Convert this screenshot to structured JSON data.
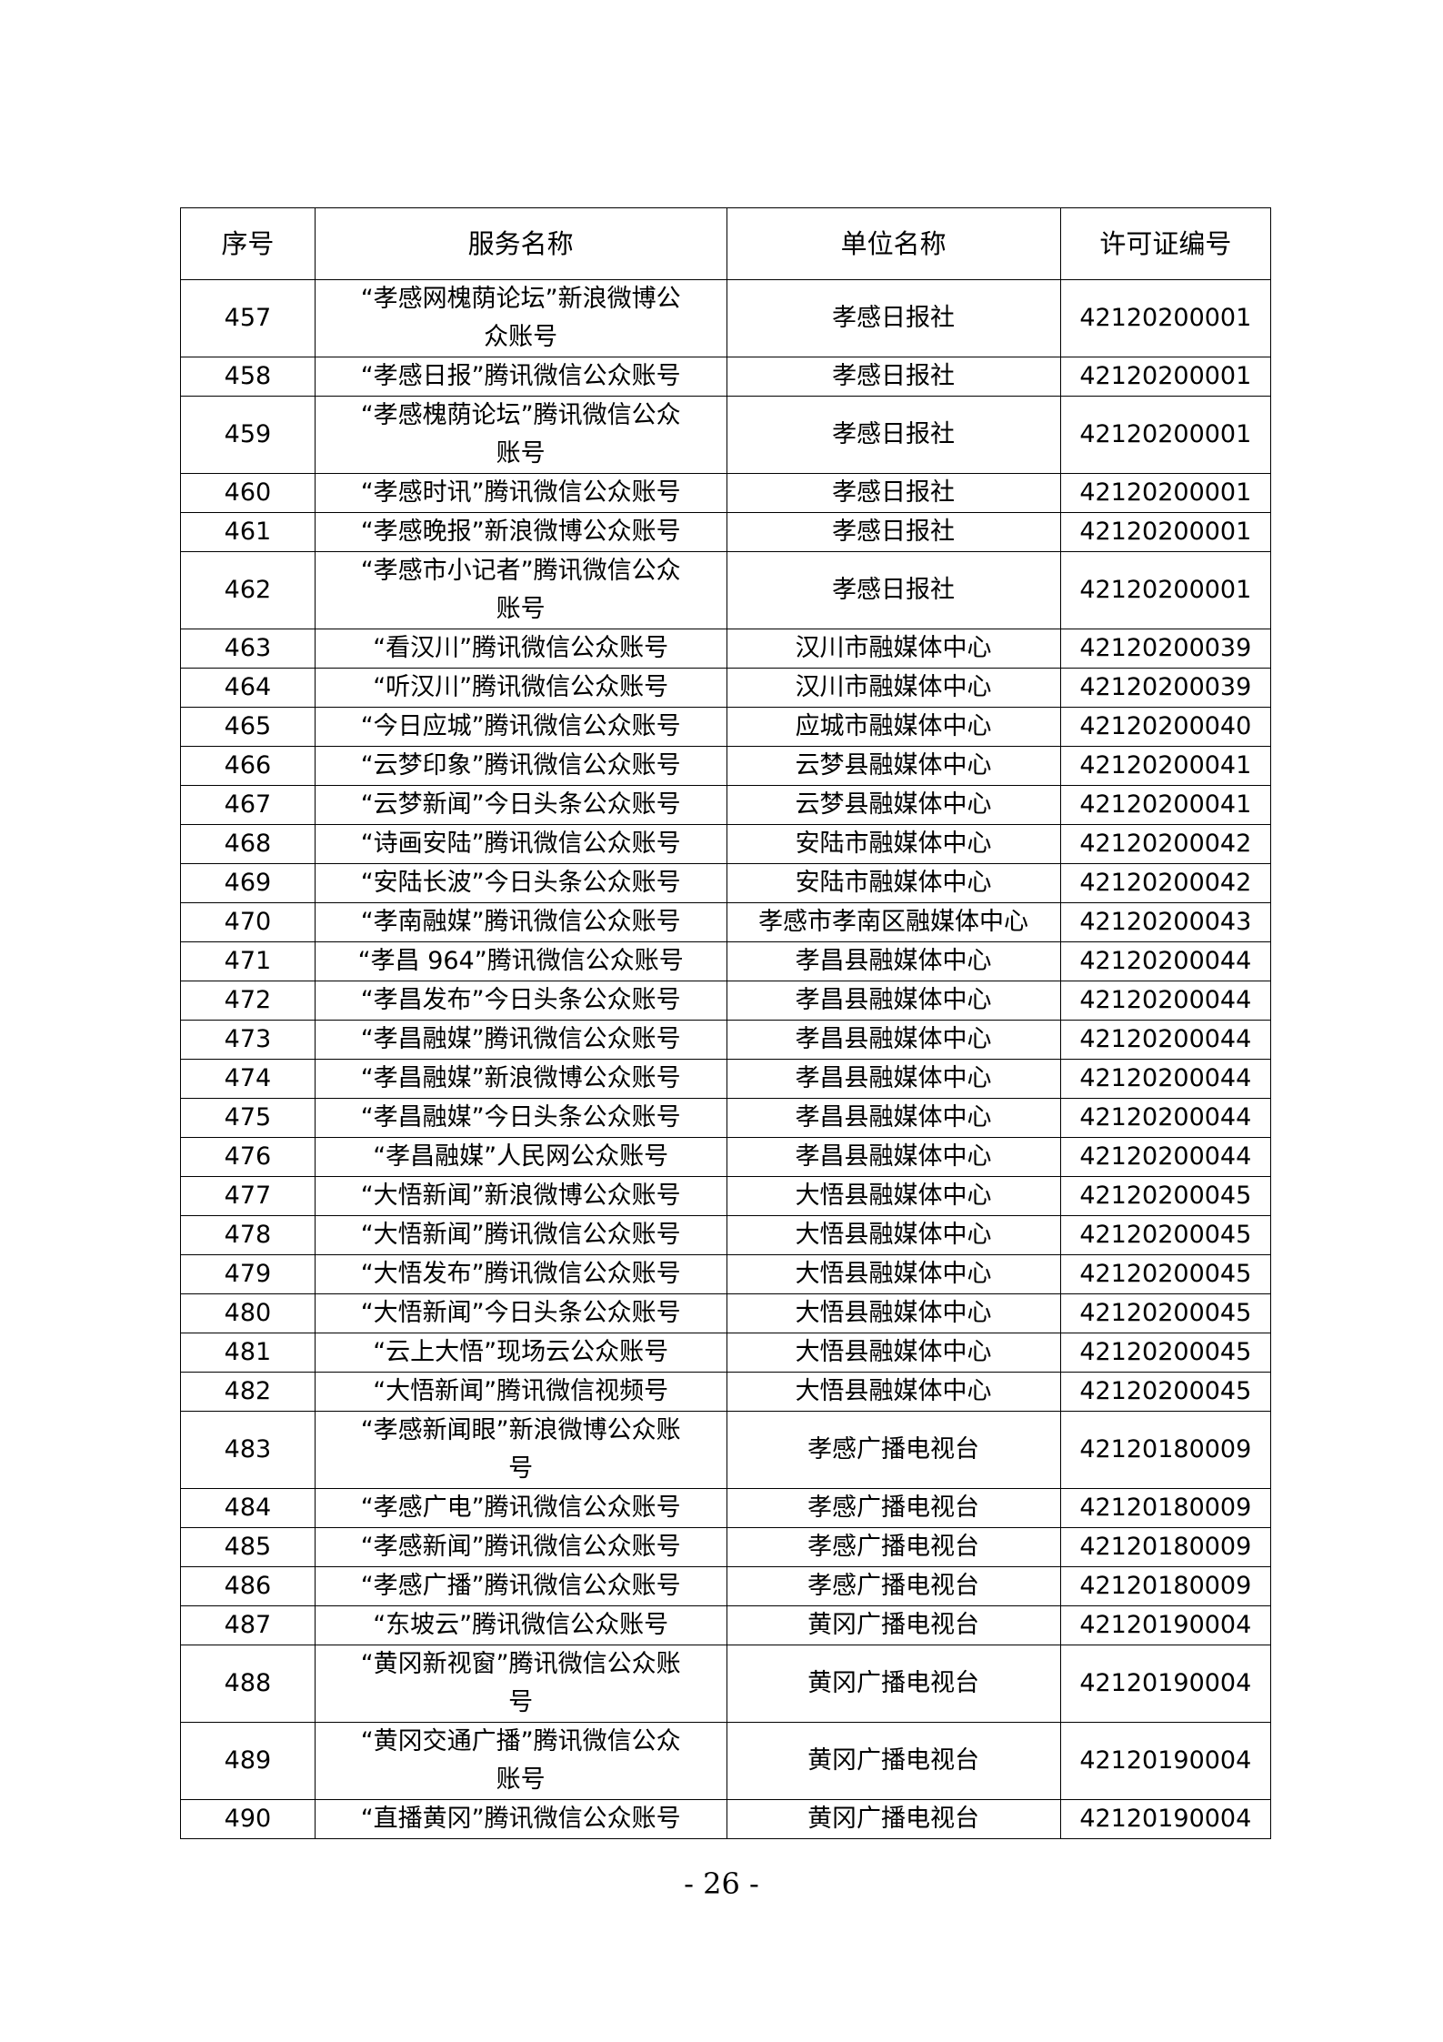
{
  "table": {
    "headers": [
      "序号",
      "服务名称",
      "单位名称",
      "许可证编号"
    ],
    "rows": [
      [
        "457",
        "“孝感网槐荫论坛”新浪微博公\n众账号",
        "孝感日报社",
        "42120200001"
      ],
      [
        "458",
        "“孝感日报”腾讯微信公众账号",
        "孝感日报社",
        "42120200001"
      ],
      [
        "459",
        "“孝感槐荫论坛”腾讯微信公众\n账号",
        "孝感日报社",
        "42120200001"
      ],
      [
        "460",
        "“孝感时讯”腾讯微信公众账号",
        "孝感日报社",
        "42120200001"
      ],
      [
        "461",
        "“孝感晚报”新浪微博公众账号",
        "孝感日报社",
        "42120200001"
      ],
      [
        "462",
        "“孝感市小记者”腾讯微信公众\n账号",
        "孝感日报社",
        "42120200001"
      ],
      [
        "463",
        "“看汉川”腾讯微信公众账号",
        "汉川市融媒体中心",
        "42120200039"
      ],
      [
        "464",
        "“听汉川”腾讯微信公众账号",
        "汉川市融媒体中心",
        "42120200039"
      ],
      [
        "465",
        "“今日应城”腾讯微信公众账号",
        "应城市融媒体中心",
        "42120200040"
      ],
      [
        "466",
        "“云梦印象”腾讯微信公众账号",
        "云梦县融媒体中心",
        "42120200041"
      ],
      [
        "467",
        "“云梦新闻”今日头条公众账号",
        "云梦县融媒体中心",
        "42120200041"
      ],
      [
        "468",
        "“诗画安陆”腾讯微信公众账号",
        "安陆市融媒体中心",
        "42120200042"
      ],
      [
        "469",
        "“安陆长波”今日头条公众账号",
        "安陆市融媒体中心",
        "42120200042"
      ],
      [
        "470",
        "“孝南融媒”腾讯微信公众账号",
        "孝感市孝南区融媒体中心",
        "42120200043"
      ],
      [
        "471",
        "“孝昌 964”腾讯微信公众账号",
        "孝昌县融媒体中心",
        "42120200044"
      ],
      [
        "472",
        "“孝昌发布”今日头条公众账号",
        "孝昌县融媒体中心",
        "42120200044"
      ],
      [
        "473",
        "“孝昌融媒”腾讯微信公众账号",
        "孝昌县融媒体中心",
        "42120200044"
      ],
      [
        "474",
        "“孝昌融媒”新浪微博公众账号",
        "孝昌县融媒体中心",
        "42120200044"
      ],
      [
        "475",
        "“孝昌融媒”今日头条公众账号",
        "孝昌县融媒体中心",
        "42120200044"
      ],
      [
        "476",
        "“孝昌融媒”人民网公众账号",
        "孝昌县融媒体中心",
        "42120200044"
      ],
      [
        "477",
        "“大悟新闻”新浪微博公众账号",
        "大悟县融媒体中心",
        "42120200045"
      ],
      [
        "478",
        "“大悟新闻”腾讯微信公众账号",
        "大悟县融媒体中心",
        "42120200045"
      ],
      [
        "479",
        "“大悟发布”腾讯微信公众账号",
        "大悟县融媒体中心",
        "42120200045"
      ],
      [
        "480",
        "“大悟新闻”今日头条公众账号",
        "大悟县融媒体中心",
        "42120200045"
      ],
      [
        "481",
        "“云上大悟”现场云公众账号",
        "大悟县融媒体中心",
        "42120200045"
      ],
      [
        "482",
        "“大悟新闻”腾讯微信视频号",
        "大悟县融媒体中心",
        "42120200045"
      ],
      [
        "483",
        "“孝感新闻眼”新浪微博公众账\n号",
        "孝感广播电视台",
        "42120180009"
      ],
      [
        "484",
        "“孝感广电”腾讯微信公众账号",
        "孝感广播电视台",
        "42120180009"
      ],
      [
        "485",
        "“孝感新闻”腾讯微信公众账号",
        "孝感广播电视台",
        "42120180009"
      ],
      [
        "486",
        "“孝感广播”腾讯微信公众账号",
        "孝感广播电视台",
        "42120180009"
      ],
      [
        "487",
        "“东坡云”腾讯微信公众账号",
        "黄冈广播电视台",
        "42120190004"
      ],
      [
        "488",
        "“黄冈新视窗”腾讯微信公众账\n号",
        "黄冈广播电视台",
        "42120190004"
      ],
      [
        "489",
        "“黄冈交通广播”腾讯微信公众\n账号",
        "黄冈广播电视台",
        "42120190004"
      ],
      [
        "490",
        "“直播黄冈”腾讯微信公众账号",
        "黄冈广播电视台",
        "42120190004"
      ]
    ]
  },
  "footer": {
    "page_number": "- 26 -"
  }
}
